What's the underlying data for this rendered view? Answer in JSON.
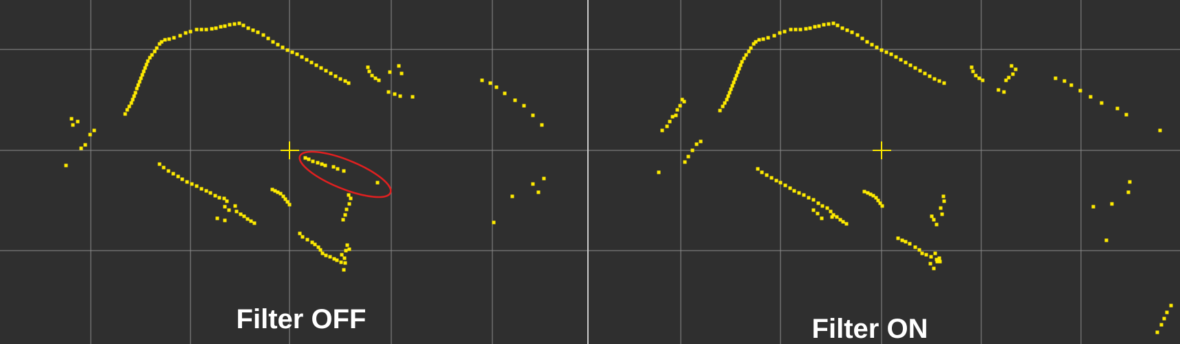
{
  "panels": [
    {
      "id": "left",
      "label": "Filter OFF",
      "points": [
        [
          182,
          166
        ],
        [
          185,
          160
        ],
        [
          188,
          155
        ],
        [
          191,
          150
        ],
        [
          193,
          145
        ],
        [
          195,
          140
        ],
        [
          197,
          135
        ],
        [
          199,
          129
        ],
        [
          201,
          124
        ],
        [
          203,
          119
        ],
        [
          205,
          114
        ],
        [
          207,
          109
        ],
        [
          209,
          104
        ],
        [
          211,
          99
        ],
        [
          213,
          94
        ],
        [
          215,
          89
        ],
        [
          218,
          84
        ],
        [
          221,
          80
        ],
        [
          225,
          75
        ],
        [
          228,
          70
        ],
        [
          232,
          64
        ],
        [
          235,
          61
        ],
        [
          240,
          58
        ],
        [
          246,
          57
        ],
        [
          253,
          55
        ],
        [
          262,
          52
        ],
        [
          270,
          48
        ],
        [
          277,
          46
        ],
        [
          286,
          43
        ],
        [
          293,
          43
        ],
        [
          300,
          43
        ],
        [
          308,
          42
        ],
        [
          314,
          41
        ],
        [
          321,
          39
        ],
        [
          327,
          38
        ],
        [
          334,
          36
        ],
        [
          341,
          35
        ],
        [
          348,
          34
        ],
        [
          354,
          37
        ],
        [
          361,
          41
        ],
        [
          368,
          44
        ],
        [
          375,
          47
        ],
        [
          383,
          51
        ],
        [
          390,
          56
        ],
        [
          397,
          61
        ],
        [
          404,
          65
        ],
        [
          411,
          69
        ],
        [
          418,
          73
        ],
        [
          425,
          76
        ],
        [
          432,
          79
        ],
        [
          439,
          83
        ],
        [
          446,
          87
        ],
        [
          453,
          91
        ],
        [
          460,
          95
        ],
        [
          467,
          99
        ],
        [
          474,
          103
        ],
        [
          481,
          107
        ],
        [
          488,
          111
        ],
        [
          495,
          115
        ],
        [
          502,
          118
        ],
        [
          507,
          121
        ],
        [
          535,
          98
        ],
        [
          537,
          104
        ],
        [
          541,
          110
        ],
        [
          546,
          114
        ],
        [
          551,
          117
        ],
        [
          567,
          105
        ],
        [
          580,
          96
        ],
        [
          584,
          107
        ],
        [
          565,
          134
        ],
        [
          574,
          137
        ],
        [
          582,
          140
        ],
        [
          600,
          141
        ],
        [
          701,
          117
        ],
        [
          713,
          121
        ],
        [
          722,
          127
        ],
        [
          734,
          136
        ],
        [
          749,
          146
        ],
        [
          762,
          154
        ],
        [
          775,
          168
        ],
        [
          788,
          182
        ],
        [
          96,
          241
        ],
        [
          106,
          182
        ],
        [
          113,
          177
        ],
        [
          104,
          173
        ],
        [
          118,
          216
        ],
        [
          124,
          211
        ],
        [
          131,
          196
        ],
        [
          137,
          190
        ],
        [
          232,
          239
        ],
        [
          238,
          244
        ],
        [
          245,
          249
        ],
        [
          252,
          253
        ],
        [
          259,
          257
        ],
        [
          265,
          261
        ],
        [
          272,
          265
        ],
        [
          279,
          268
        ],
        [
          286,
          271
        ],
        [
          293,
          275
        ],
        [
          300,
          278
        ],
        [
          306,
          281
        ],
        [
          313,
          285
        ],
        [
          319,
          288
        ],
        [
          326,
          289
        ],
        [
          344,
          308
        ],
        [
          350,
          312
        ],
        [
          355,
          315
        ],
        [
          360,
          319
        ],
        [
          365,
          322
        ],
        [
          370,
          325
        ],
        [
          330,
          293
        ],
        [
          327,
          301
        ],
        [
          333,
          306
        ],
        [
          316,
          318
        ],
        [
          327,
          321
        ],
        [
          342,
          300
        ],
        [
          396,
          276
        ],
        [
          400,
          278
        ],
        [
          404,
          280
        ],
        [
          408,
          282
        ],
        [
          412,
          286
        ],
        [
          415,
          290
        ],
        [
          418,
          294
        ],
        [
          421,
          298
        ],
        [
          444,
          230
        ],
        [
          449,
          232
        ],
        [
          455,
          235
        ],
        [
          462,
          237
        ],
        [
          468,
          239
        ],
        [
          473,
          241
        ],
        [
          485,
          243
        ],
        [
          491,
          246
        ],
        [
          500,
          249
        ],
        [
          549,
          266
        ],
        [
          507,
          284
        ],
        [
          510,
          289
        ],
        [
          508,
          297
        ],
        [
          504,
          305
        ],
        [
          502,
          313
        ],
        [
          499,
          320
        ],
        [
          436,
          340
        ],
        [
          440,
          345
        ],
        [
          447,
          349
        ],
        [
          454,
          353
        ],
        [
          458,
          356
        ],
        [
          463,
          360
        ],
        [
          466,
          364
        ],
        [
          469,
          369
        ],
        [
          474,
          372
        ],
        [
          480,
          374
        ],
        [
          486,
          377
        ],
        [
          490,
          379
        ],
        [
          502,
          383
        ],
        [
          505,
          357
        ],
        [
          508,
          363
        ],
        [
          503,
          365
        ],
        [
          497,
          371
        ],
        [
          501,
          376
        ],
        [
          496,
          382
        ],
        [
          500,
          393
        ],
        [
          718,
          324
        ],
        [
          745,
          286
        ],
        [
          775,
          268
        ],
        [
          791,
          260
        ],
        [
          783,
          280
        ]
      ],
      "ellipse_annotation": true
    },
    {
      "id": "right",
      "label": "Filter ON",
      "points": [
        [
          1047,
          161
        ],
        [
          1051,
          155
        ],
        [
          1054,
          150
        ],
        [
          1057,
          145
        ],
        [
          1059,
          140
        ],
        [
          1061,
          135
        ],
        [
          1063,
          130
        ],
        [
          1065,
          125
        ],
        [
          1067,
          120
        ],
        [
          1069,
          115
        ],
        [
          1071,
          110
        ],
        [
          1073,
          105
        ],
        [
          1075,
          100
        ],
        [
          1077,
          95
        ],
        [
          1079,
          90
        ],
        [
          1082,
          85
        ],
        [
          1085,
          80
        ],
        [
          1089,
          75
        ],
        [
          1092,
          70
        ],
        [
          1096,
          64
        ],
        [
          1099,
          61
        ],
        [
          1104,
          58
        ],
        [
          1110,
          57
        ],
        [
          1117,
          55
        ],
        [
          1126,
          52
        ],
        [
          1134,
          48
        ],
        [
          1141,
          46
        ],
        [
          1150,
          43
        ],
        [
          1157,
          43
        ],
        [
          1164,
          43
        ],
        [
          1172,
          42
        ],
        [
          1178,
          41
        ],
        [
          1185,
          39
        ],
        [
          1191,
          38
        ],
        [
          1198,
          36
        ],
        [
          1205,
          35
        ],
        [
          1212,
          34
        ],
        [
          1218,
          37
        ],
        [
          1225,
          41
        ],
        [
          1232,
          44
        ],
        [
          1239,
          47
        ],
        [
          1247,
          51
        ],
        [
          1254,
          56
        ],
        [
          1261,
          61
        ],
        [
          1268,
          65
        ],
        [
          1275,
          69
        ],
        [
          1282,
          73
        ],
        [
          1289,
          76
        ],
        [
          1296,
          79
        ],
        [
          1303,
          83
        ],
        [
          1310,
          87
        ],
        [
          1317,
          91
        ],
        [
          1324,
          95
        ],
        [
          1331,
          99
        ],
        [
          1338,
          103
        ],
        [
          1345,
          107
        ],
        [
          1352,
          111
        ],
        [
          1359,
          115
        ],
        [
          1366,
          118
        ],
        [
          1373,
          121
        ],
        [
          1413,
          98
        ],
        [
          1415,
          104
        ],
        [
          1419,
          110
        ],
        [
          1424,
          114
        ],
        [
          1429,
          117
        ],
        [
          1471,
          96
        ],
        [
          1477,
          101
        ],
        [
          1473,
          108
        ],
        [
          1467,
          113
        ],
        [
          1463,
          117
        ],
        [
          1452,
          131
        ],
        [
          1460,
          134
        ],
        [
          1535,
          114
        ],
        [
          1548,
          118
        ],
        [
          1558,
          124
        ],
        [
          1571,
          132
        ],
        [
          1586,
          141
        ],
        [
          1602,
          150
        ],
        [
          1625,
          158
        ],
        [
          1638,
          167
        ],
        [
          1687,
          190
        ],
        [
          958,
          251
        ],
        [
          963,
          190
        ],
        [
          970,
          184
        ],
        [
          974,
          177
        ],
        [
          978,
          170
        ],
        [
          983,
          168
        ],
        [
          985,
          160
        ],
        [
          989,
          154
        ],
        [
          995,
          148
        ],
        [
          992,
          145
        ],
        [
          996,
          236
        ],
        [
          1001,
          228
        ],
        [
          1007,
          219
        ],
        [
          1013,
          210
        ],
        [
          1019,
          206
        ],
        [
          1102,
          246
        ],
        [
          1108,
          251
        ],
        [
          1115,
          255
        ],
        [
          1122,
          259
        ],
        [
          1129,
          263
        ],
        [
          1135,
          266
        ],
        [
          1142,
          270
        ],
        [
          1149,
          274
        ],
        [
          1155,
          278
        ],
        [
          1162,
          281
        ],
        [
          1169,
          284
        ],
        [
          1176,
          288
        ],
        [
          1183,
          291
        ],
        [
          1190,
          296
        ],
        [
          1196,
          300
        ],
        [
          1203,
          303
        ],
        [
          1208,
          308
        ],
        [
          1212,
          313
        ],
        [
          1217,
          316
        ],
        [
          1222,
          320
        ],
        [
          1226,
          323
        ],
        [
          1231,
          326
        ],
        [
          1183,
          306
        ],
        [
          1189,
          311
        ],
        [
          1195,
          318
        ],
        [
          1210,
          316
        ],
        [
          1257,
          279
        ],
        [
          1262,
          281
        ],
        [
          1266,
          283
        ],
        [
          1270,
          285
        ],
        [
          1274,
          288
        ],
        [
          1277,
          292
        ],
        [
          1280,
          296
        ],
        [
          1283,
          300
        ],
        [
          1355,
          315
        ],
        [
          1358,
          320
        ],
        [
          1362,
          327
        ],
        [
          1368,
          303
        ],
        [
          1370,
          312
        ],
        [
          1373,
          293
        ],
        [
          1372,
          286
        ],
        [
          1306,
          347
        ],
        [
          1312,
          350
        ],
        [
          1317,
          352
        ],
        [
          1323,
          355
        ],
        [
          1331,
          360
        ],
        [
          1337,
          364
        ],
        [
          1341,
          369
        ],
        [
          1347,
          371
        ],
        [
          1354,
          374
        ],
        [
          1362,
          378
        ],
        [
          1367,
          381
        ],
        [
          1353,
          384
        ],
        [
          1358,
          391
        ],
        [
          1363,
          381
        ],
        [
          1366,
          376
        ],
        [
          1360,
          369
        ],
        [
          1590,
          301
        ],
        [
          1617,
          297
        ],
        [
          1643,
          265
        ],
        [
          1641,
          280
        ],
        [
          1609,
          350
        ],
        [
          1683,
          484
        ],
        [
          1689,
          473
        ],
        [
          1693,
          464
        ],
        [
          1697,
          455
        ],
        [
          1703,
          445
        ]
      ],
      "ellipse_annotation": false
    }
  ],
  "colors": {
    "background": "#2f2f2f",
    "grid": "#8c8c8c",
    "points": "#ffeb00",
    "origin_marker": "#ffeb00",
    "annotation": "#e02020",
    "divider": "#ffffff",
    "label": "#ffffff"
  }
}
